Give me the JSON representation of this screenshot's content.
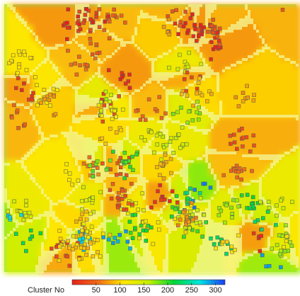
{
  "chart_data": {
    "type": "heatmap",
    "title": "",
    "description_hint": "",
    "cells_shown": "square markers on smoothed cluster-id field",
    "colorbar": {
      "label": "Cluster No",
      "min": 0,
      "max": 320,
      "ticks": [
        "50",
        "100",
        "150",
        "200",
        "250",
        "300"
      ],
      "tick_values": [
        50,
        100,
        150,
        200,
        250,
        300
      ],
      "colormap": [
        "#e8211b",
        "#f06a16",
        "#ffe600",
        "#c6f000",
        "#00d637",
        "#00e5e0",
        "#1b3cf5"
      ]
    },
    "background_color": "#86e87a"
  }
}
